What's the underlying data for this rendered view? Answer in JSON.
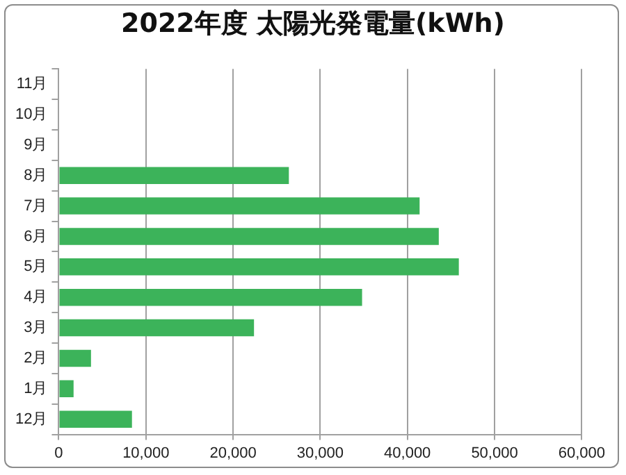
{
  "chart_data": {
    "type": "bar",
    "orientation": "horizontal",
    "title": "2022年度 太陽光発電量(kWh)",
    "categories": [
      "11月",
      "10月",
      "9月",
      "8月",
      "7月",
      "6月",
      "5月",
      "4月",
      "3月",
      "2月",
      "1月",
      "12月"
    ],
    "values": [
      null,
      null,
      null,
      26400,
      41400,
      43600,
      45900,
      34800,
      22400,
      3700,
      1700,
      8400
    ],
    "color": "#3cb35a",
    "xlim": [
      0,
      60000
    ],
    "xticks": [
      0,
      {
        "value": 10000,
        "label": "10,000"
      },
      {
        "value": 20000,
        "label": "20,000"
      },
      {
        "value": 30000,
        "label": "30,000"
      },
      {
        "value": 40000,
        "label": "40,000"
      },
      {
        "value": 50000,
        "label": "50,000"
      },
      {
        "value": 60000,
        "label": "60,000"
      }
    ],
    "grid": "x",
    "legend": false
  }
}
